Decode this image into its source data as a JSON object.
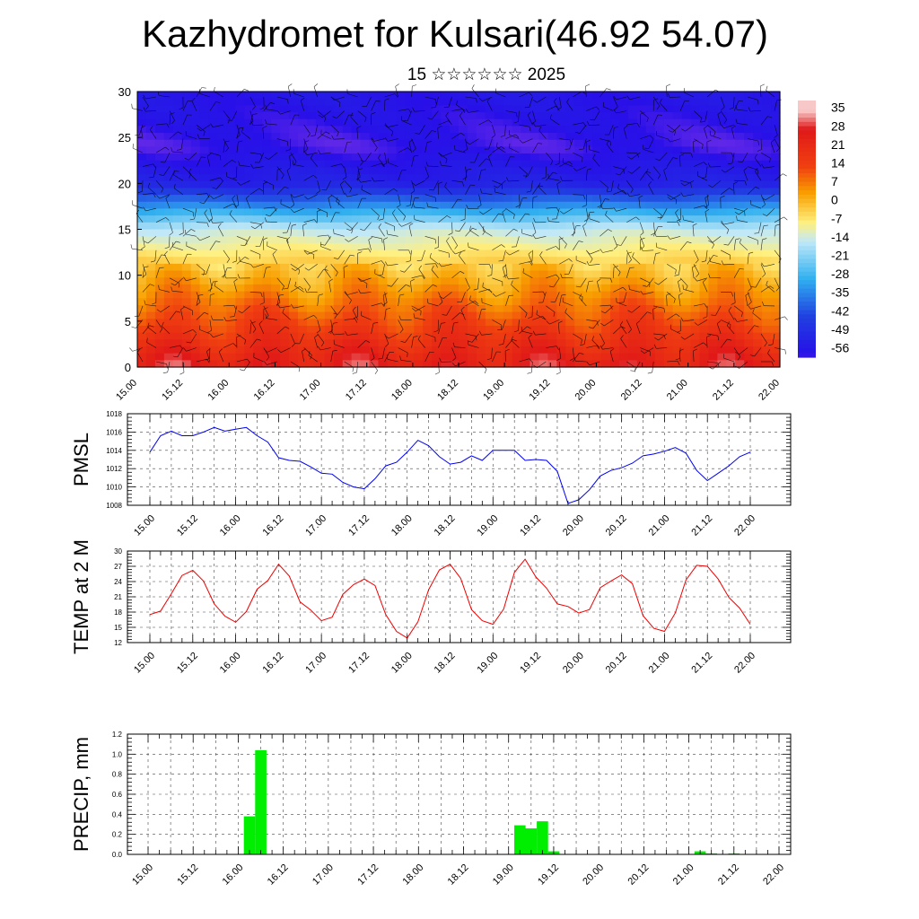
{
  "title": "Kazhydromet for Kulsari(46.92 54.07)",
  "subtitle": "15 ☆☆☆☆☆☆ 2025",
  "time_ticks": [
    "15.00",
    "15.12",
    "16.00",
    "16.12",
    "17.00",
    "17.12",
    "18.00",
    "18.12",
    "19.00",
    "19.12",
    "20.00",
    "20.12",
    "21.00",
    "21.12",
    "22.00"
  ],
  "colors": {
    "pmsl_line": "#0000ee",
    "temp_line": "#ee0000",
    "precip_bar": "#00ee00"
  },
  "chart_data": [
    {
      "id": "cross-section",
      "type": "heatmap",
      "title": "",
      "ylabel": "",
      "ylim": [
        0,
        30
      ],
      "yticks": [
        "0",
        "5",
        "10",
        "15",
        "20",
        "25",
        "30"
      ],
      "colorbar_labels": [
        "35",
        "28",
        "21",
        "14",
        "7",
        "0",
        "-7",
        "-14",
        "-21",
        "-28",
        "-35",
        "-42",
        "-49",
        "-56"
      ],
      "colorbar_stops": [
        {
          "value": 35,
          "color": "#f8c8c8"
        },
        {
          "value": 28,
          "color": "#e01818"
        },
        {
          "value": 14,
          "color": "#f04010"
        },
        {
          "value": 4,
          "color": "#f8a000"
        },
        {
          "value": -7,
          "color": "#fff080"
        },
        {
          "value": -14,
          "color": "#c0e8f8"
        },
        {
          "value": -28,
          "color": "#30b0f0"
        },
        {
          "value": -42,
          "color": "#2040e0"
        },
        {
          "value": -56,
          "color": "#2810e8"
        },
        {
          "value": -60,
          "color": "#8838e8"
        }
      ],
      "overlay": "wind barbs"
    },
    {
      "id": "pmsl",
      "type": "line",
      "ylabel": "PMSL",
      "ylim": [
        1008,
        1018
      ],
      "yticks": [
        "1008",
        "1010",
        "1012",
        "1014",
        "1016",
        "1018"
      ],
      "grid": true,
      "series": [
        {
          "values": [
            1013.8,
            1015.6,
            1016.1,
            1015.6,
            1015.6,
            1016.0,
            1016.5,
            1016.1,
            1016.3,
            1016.5,
            1015.6,
            1014.9,
            1013.2,
            1012.9,
            1012.8,
            1012.2,
            1011.5,
            1011.4,
            1010.5,
            1010.0,
            1009.8,
            1010.9,
            1012.3,
            1012.7,
            1013.8,
            1015.1,
            1014.5,
            1013.3,
            1012.5,
            1012.7,
            1013.4,
            1012.9,
            1014.0,
            1014.0,
            1014.0,
            1012.9,
            1013.0,
            1012.9,
            1011.7,
            1008.2,
            1008.6,
            1009.7,
            1011.2,
            1011.8,
            1012.1,
            1012.6,
            1013.4,
            1013.6,
            1013.9,
            1014.3,
            1013.7,
            1011.8,
            1010.7,
            1011.5,
            1012.3,
            1013.3,
            1013.8
          ]
        }
      ]
    },
    {
      "id": "temp",
      "type": "line",
      "ylabel": "TEMP at 2 M",
      "ylim": [
        12,
        30
      ],
      "yticks": [
        "12",
        "15",
        "18",
        "21",
        "24",
        "27",
        "30"
      ],
      "grid": true,
      "series": [
        {
          "values": [
            17.5,
            18.2,
            21.6,
            25.2,
            26.2,
            24.1,
            19.6,
            17.2,
            16.0,
            18.1,
            22.5,
            24.2,
            27.4,
            25.1,
            20.0,
            18.4,
            16.3,
            17.0,
            21.5,
            23.4,
            24.5,
            23.2,
            17.5,
            14.2,
            12.9,
            16.1,
            22.4,
            26.3,
            27.4,
            24.6,
            18.5,
            16.3,
            15.6,
            18.6,
            25.8,
            28.4,
            24.9,
            22.7,
            19.6,
            19.1,
            17.8,
            18.5,
            22.8,
            24.1,
            25.3,
            23.6,
            17.3,
            14.8,
            14.2,
            17.8,
            24.3,
            27.2,
            27.0,
            24.5,
            20.9,
            18.8,
            15.6
          ]
        }
      ]
    },
    {
      "id": "precip",
      "type": "bar",
      "ylabel": "PRECIP, mm",
      "ylim": [
        0,
        1.2
      ],
      "yticks": [
        "0.0",
        "0.2",
        "0.4",
        "0.6",
        "0.8",
        "1.0",
        "1.2"
      ],
      "grid": true,
      "bars": [
        {
          "x": 16.125,
          "value": 0.38
        },
        {
          "x": 16.25,
          "value": 1.04
        },
        {
          "x": 19.125,
          "value": 0.29
        },
        {
          "x": 19.25,
          "value": 0.26
        },
        {
          "x": 19.375,
          "value": 0.33
        },
        {
          "x": 19.5,
          "value": 0.03
        },
        {
          "x": 21.125,
          "value": 0.03
        },
        {
          "x": 21.25,
          "value": 0.01
        },
        {
          "x": 21.5,
          "value": 0.01
        }
      ]
    }
  ]
}
